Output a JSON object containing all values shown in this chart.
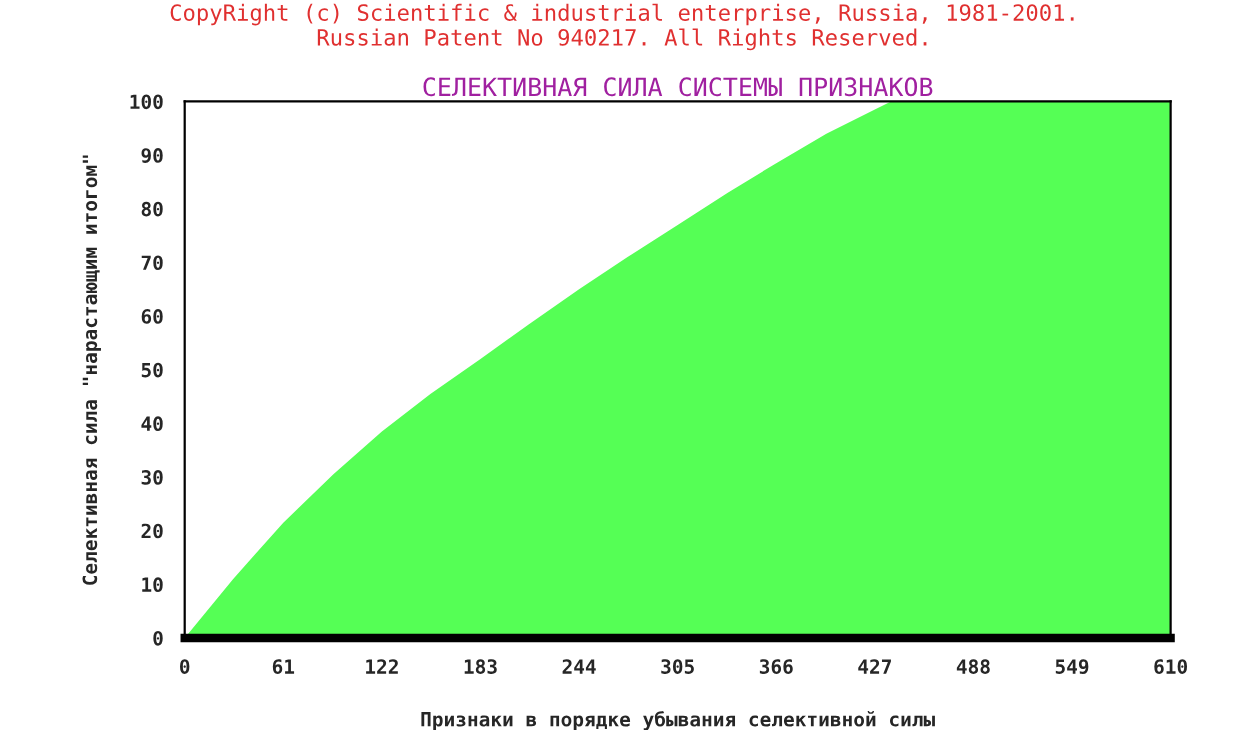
{
  "chart_data": {
    "type": "area",
    "title": "СЕЛЕКТИВНАЯ СИЛА СИСТЕМЫ ПРИЗНАКОВ",
    "xlabel": "Признаки в порядке убывания селективной силы",
    "ylabel": "Селективная сила \"нарастающим итогом\"",
    "annotations": [
      "CopyRight (c) Scientific & industrial enterprise, Russia, 1981-2001.",
      "Russian Patent No 940217. All Rights Reserved."
    ],
    "x": [
      0,
      30,
      61,
      92,
      122,
      152,
      183,
      213,
      244,
      274,
      305,
      336,
      366,
      397,
      427,
      437,
      488,
      549,
      610
    ],
    "series": [
      {
        "color": "#55ff55",
        "values": [
          0,
          11,
          21.5,
          30.5,
          38.5,
          45.5,
          52,
          58.5,
          65,
          71,
          77,
          83,
          88.5,
          94,
          98.5,
          100,
          100,
          100,
          100
        ]
      }
    ],
    "xlim": [
      0,
      610
    ],
    "xticks": [
      0,
      61,
      122,
      183,
      244,
      305,
      366,
      427,
      488,
      549,
      610
    ],
    "ylim": [
      0,
      100
    ],
    "yticks": [
      0,
      10,
      20,
      30,
      40,
      50,
      60,
      70,
      80,
      90,
      100
    ],
    "grid": false,
    "legend": false
  }
}
